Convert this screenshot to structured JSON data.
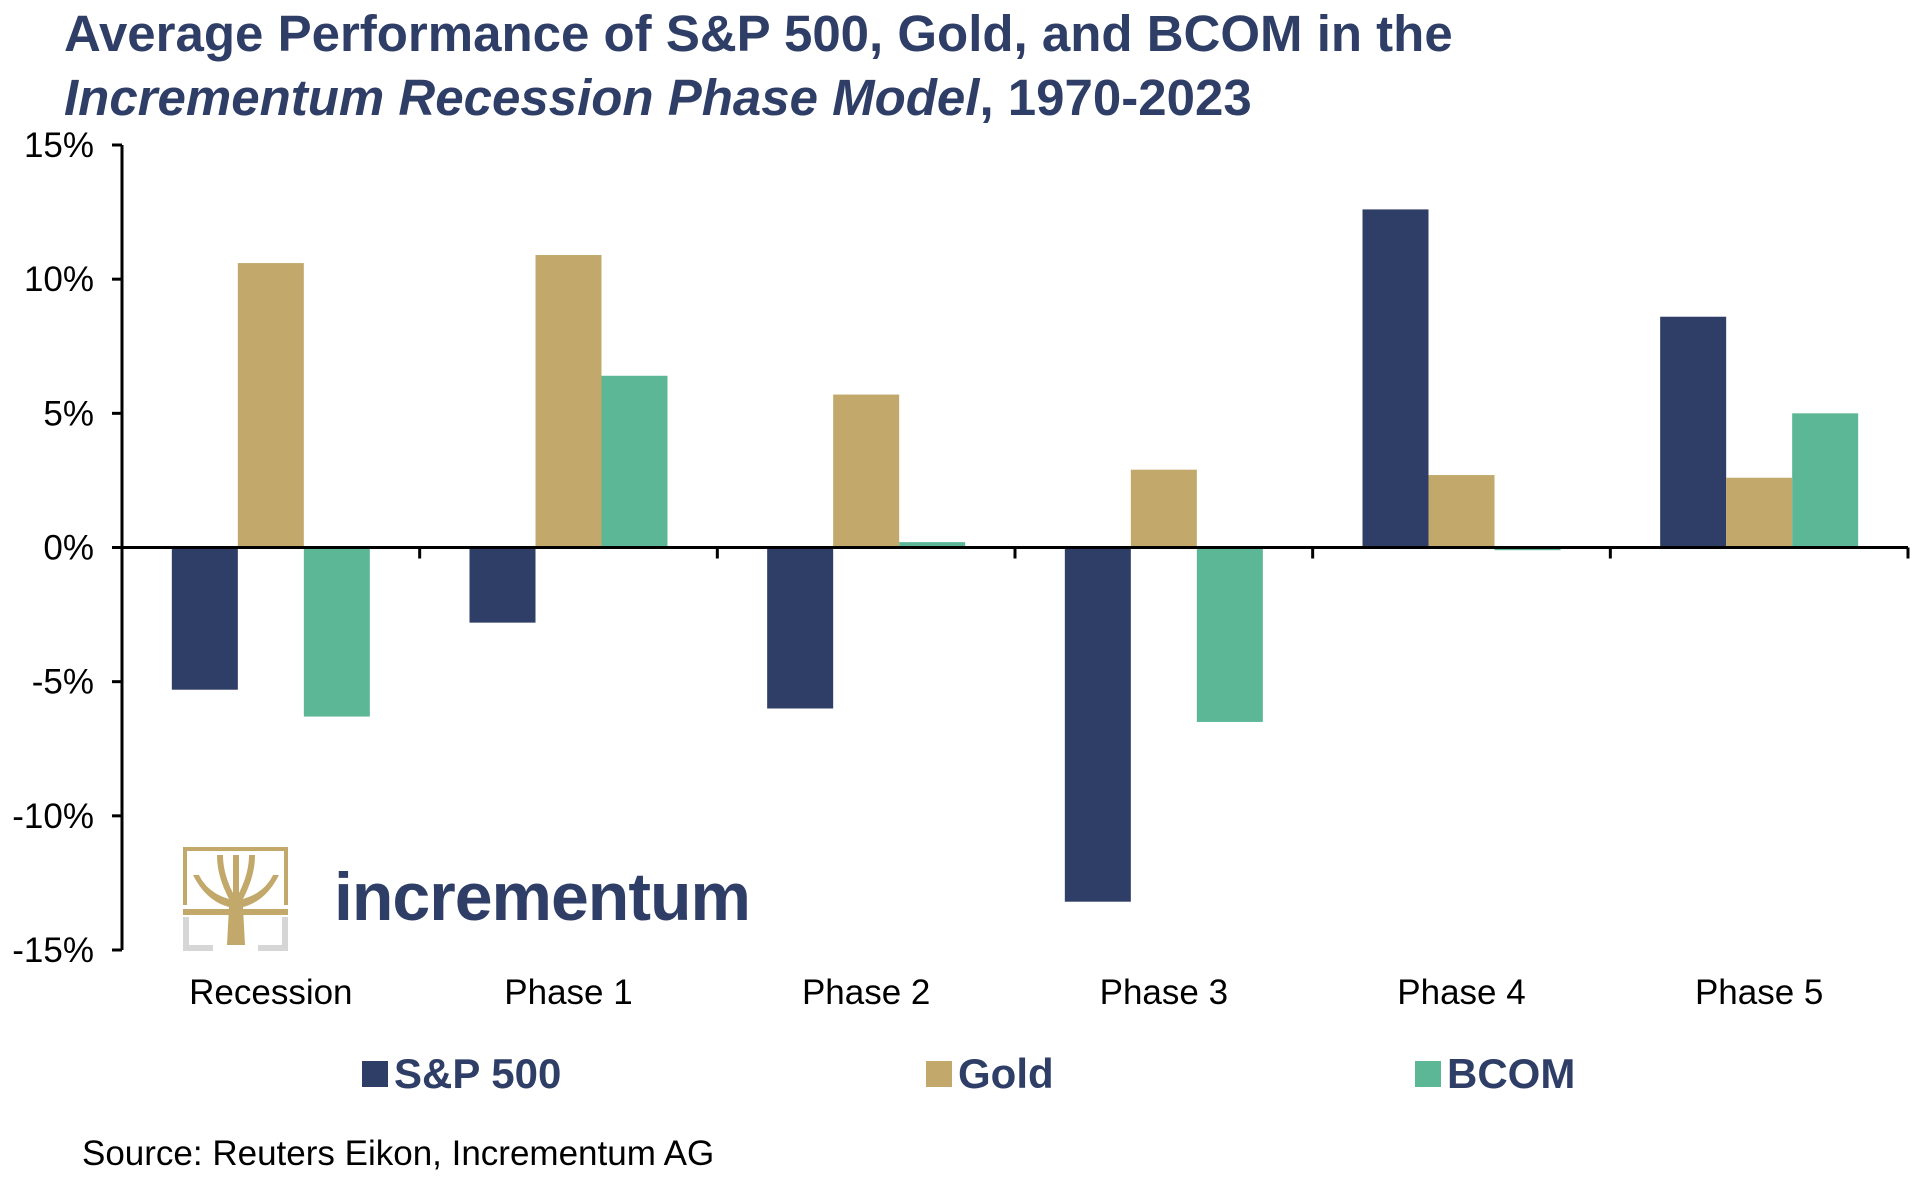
{
  "title": {
    "line1": "Average Performance of S&P 500, Gold, and BCOM in the",
    "line2_italic": "Incrementum Recession Phase Model",
    "line2_rest": ", 1970-2023"
  },
  "logo": {
    "text": "incrementum",
    "icon": "tree-logo-icon"
  },
  "source": "Source: Reuters Eikon, Incrementum AG",
  "chart_data": {
    "type": "bar",
    "title": "Average Performance of S&P 500, Gold, and BCOM in the Incrementum Recession Phase Model, 1970-2023",
    "categories": [
      "Recession",
      "Phase 1",
      "Phase 2",
      "Phase 3",
      "Phase 4",
      "Phase 5"
    ],
    "series": [
      {
        "name": "S&P 500",
        "color": "#2f3e66",
        "values": [
          -5.3,
          -2.8,
          -6.0,
          -13.2,
          12.6,
          8.6
        ]
      },
      {
        "name": "Gold",
        "color": "#c2a96b",
        "values": [
          10.6,
          10.9,
          5.7,
          2.9,
          2.7,
          2.6
        ]
      },
      {
        "name": "BCOM",
        "color": "#5bb795",
        "values": [
          -6.3,
          6.4,
          0.2,
          -6.5,
          -0.1,
          5.0
        ]
      }
    ],
    "y_ticks": [
      "15%",
      "10%",
      "5%",
      "0%",
      "-5%",
      "-10%",
      "-15%"
    ],
    "y_tick_values": [
      15,
      10,
      5,
      0,
      -5,
      -10,
      -15
    ],
    "ylim": [
      -15,
      15
    ],
    "legend_position": "bottom",
    "grid": false
  }
}
